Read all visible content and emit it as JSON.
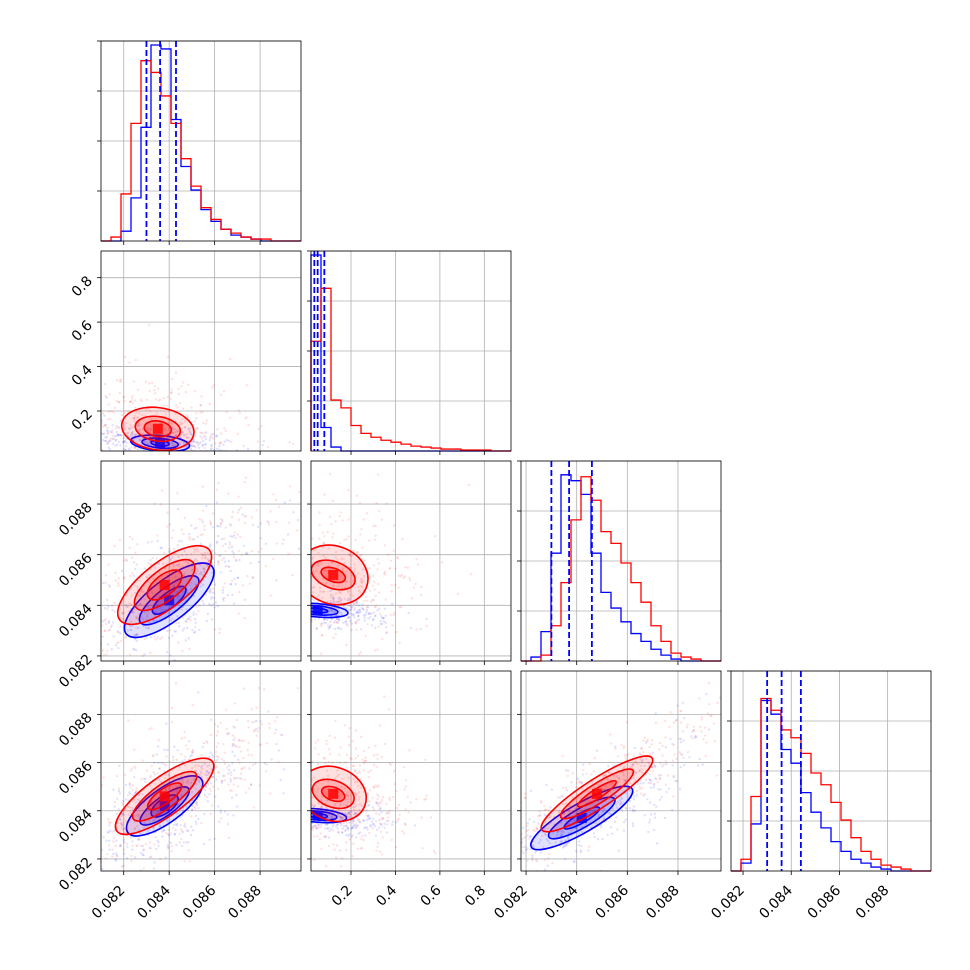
{
  "colors": {
    "series_a": "#ff0000",
    "series_b": "#0000ff",
    "grid": "#b0b0b0",
    "frame": "#000000"
  },
  "chart_data": {
    "type": "corner",
    "grid": true,
    "series": [
      {
        "color": "#ff0000"
      },
      {
        "color": "#0000ff"
      }
    ],
    "quantile_lines": {
      "color": "#0000ff",
      "style": "dashed"
    },
    "parameters": [
      {
        "range": [
          0.081,
          0.0898
        ],
        "ticks": [
          "0.082",
          "0.084",
          "0.086",
          "0.088"
        ],
        "tick_values": [
          0.082,
          0.084,
          0.086,
          0.088
        ],
        "quantiles_b": [
          0.083,
          0.0836,
          0.0843
        ],
        "hist_a": [
          0.0,
          0.02,
          0.24,
          0.6,
          0.92,
          0.86,
          0.74,
          0.6,
          0.42,
          0.28,
          0.17,
          0.11,
          0.06,
          0.04,
          0.02,
          0.01,
          0.01,
          0.0,
          0.0,
          0.0
        ],
        "hist_b": [
          0.0,
          0.0,
          0.05,
          0.22,
          0.58,
          1.0,
          0.98,
          0.62,
          0.38,
          0.26,
          0.16,
          0.1,
          0.06,
          0.03,
          0.02,
          0.01,
          0.0,
          0.0,
          0.0,
          0.0
        ]
      },
      {
        "range": [
          0.02,
          0.92
        ],
        "ticks": [
          "0.2",
          "0.4",
          "0.6",
          "0.8"
        ],
        "tick_values": [
          0.2,
          0.4,
          0.6,
          0.8
        ],
        "quantiles_b": [
          0.035,
          0.05,
          0.08
        ],
        "hist_a": [
          0.56,
          0.83,
          0.26,
          0.22,
          0.13,
          0.09,
          0.07,
          0.055,
          0.045,
          0.035,
          0.025,
          0.02,
          0.015,
          0.01,
          0.01,
          0.005,
          0.005,
          0.005,
          0.0,
          0.0
        ],
        "hist_b": [
          1.0,
          0.12,
          0.02,
          0.0,
          0.0,
          0.0,
          0.0,
          0.0,
          0.0,
          0.0,
          0.0,
          0.0,
          0.0,
          0.0,
          0.0,
          0.0,
          0.0,
          0.0,
          0.0,
          0.0
        ]
      },
      {
        "range": [
          0.0818,
          0.0897
        ],
        "ticks": [
          "0.082",
          "0.084",
          "0.086",
          "0.088"
        ],
        "tick_values": [
          0.082,
          0.084,
          0.086,
          0.088
        ],
        "quantiles_b": [
          0.083,
          0.0837,
          0.0846
        ],
        "hist_a": [
          0.0,
          0.0,
          0.03,
          0.18,
          0.4,
          0.72,
          0.94,
          0.82,
          0.66,
          0.6,
          0.5,
          0.4,
          0.3,
          0.18,
          0.1,
          0.04,
          0.02,
          0.01,
          0.0,
          0.0
        ],
        "hist_b": [
          0.0,
          0.02,
          0.15,
          0.55,
          0.95,
          0.92,
          0.85,
          0.55,
          0.35,
          0.27,
          0.2,
          0.14,
          0.1,
          0.06,
          0.03,
          0.01,
          0.0,
          0.0,
          0.0,
          0.0
        ]
      },
      {
        "range": [
          0.0815,
          0.0898
        ],
        "ticks": [
          "0.082",
          "0.084",
          "0.086",
          "0.088"
        ],
        "tick_values": [
          0.082,
          0.084,
          0.086,
          0.088
        ],
        "quantiles_b": [
          0.083,
          0.0836,
          0.0844
        ],
        "hist_a": [
          0.0,
          0.06,
          0.38,
          0.88,
          0.82,
          0.72,
          0.68,
          0.6,
          0.5,
          0.44,
          0.35,
          0.26,
          0.17,
          0.1,
          0.06,
          0.03,
          0.02,
          0.01,
          0.0,
          0.0
        ],
        "hist_b": [
          0.0,
          0.04,
          0.24,
          0.87,
          0.8,
          0.62,
          0.55,
          0.4,
          0.3,
          0.22,
          0.15,
          0.1,
          0.06,
          0.04,
          0.02,
          0.01,
          0.0,
          0.0,
          0.0,
          0.0
        ]
      }
    ],
    "contours": {
      "1-0": {
        "a": {
          "center": [
            0.0835,
            0.12
          ],
          "levels": [
            {
              "r": [
                0.0016,
                0.095
              ],
              "angle": 8
            },
            {
              "r": [
                0.001,
                0.055
              ],
              "angle": 8
            },
            {
              "r": [
                0.0006,
                0.035
              ],
              "angle": 8
            }
          ]
        },
        "b": {
          "center": [
            0.0836,
            0.055
          ],
          "levels": [
            {
              "r": [
                0.0013,
                0.035
              ],
              "angle": 5
            },
            {
              "r": [
                0.0008,
                0.022
              ],
              "angle": 5
            },
            {
              "r": [
                0.0004,
                0.012
              ],
              "angle": 5
            }
          ]
        }
      },
      "2-0": {
        "a": {
          "center": [
            0.0838,
            0.0848
          ],
          "levels": [
            {
              "r": [
                0.0025,
                0.0009
              ],
              "angle": -38
            },
            {
              "r": [
                0.0016,
                0.0006
              ],
              "angle": -38
            },
            {
              "r": [
                0.0009,
                0.0004
              ],
              "angle": -38
            }
          ]
        },
        "b": {
          "center": [
            0.084,
            0.0842
          ],
          "levels": [
            {
              "r": [
                0.0024,
                0.0008
              ],
              "angle": -38
            },
            {
              "r": [
                0.0016,
                0.0005
              ],
              "angle": -38
            },
            {
              "r": [
                0.0009,
                0.0003
              ],
              "angle": -38
            }
          ]
        }
      },
      "2-1": {
        "a": {
          "center": [
            0.12,
            0.0852
          ],
          "levels": [
            {
              "r": [
                0.13,
                0.0014
              ],
              "angle": -70
            },
            {
              "r": [
                0.06,
                0.0009
              ],
              "angle": -70
            },
            {
              "r": [
                0.03,
                0.0005
              ],
              "angle": -70
            }
          ]
        },
        "b": {
          "center": [
            0.05,
            0.0838
          ],
          "levels": [
            {
              "r": [
                0.03,
                0.0012
              ],
              "angle": -85
            },
            {
              "r": [
                0.02,
                0.0008
              ],
              "angle": -85
            },
            {
              "r": [
                0.01,
                0.0004
              ],
              "angle": -85
            }
          ]
        }
      },
      "3-0": {
        "a": {
          "center": [
            0.0838,
            0.0846
          ],
          "levels": [
            {
              "r": [
                0.0026,
                0.0008
              ],
              "angle": -36
            },
            {
              "r": [
                0.0017,
                0.0005
              ],
              "angle": -36
            },
            {
              "r": [
                0.0009,
                0.0003
              ],
              "angle": -36
            }
          ]
        },
        "b": {
          "center": [
            0.0838,
            0.0842
          ],
          "levels": [
            {
              "r": [
                0.002,
                0.0007
              ],
              "angle": -36
            },
            {
              "r": [
                0.0013,
                0.0004
              ],
              "angle": -36
            },
            {
              "r": [
                0.0007,
                0.0003
              ],
              "angle": -36
            }
          ]
        }
      },
      "3-1": {
        "a": {
          "center": [
            0.12,
            0.0847
          ],
          "levels": [
            {
              "r": [
                0.12,
                0.0014
              ],
              "angle": -70
            },
            {
              "r": [
                0.06,
                0.0009
              ],
              "angle": -70
            },
            {
              "r": [
                0.03,
                0.0005
              ],
              "angle": -70
            }
          ]
        },
        "b": {
          "center": [
            0.05,
            0.0838
          ],
          "levels": [
            {
              "r": [
                0.03,
                0.0012
              ],
              "angle": -85
            },
            {
              "r": [
                0.02,
                0.0008
              ],
              "angle": -85
            },
            {
              "r": [
                0.01,
                0.0004
              ],
              "angle": -85
            }
          ]
        }
      },
      "3-2": {
        "a": {
          "center": [
            0.0848,
            0.0847
          ],
          "levels": [
            {
              "r": [
                0.0026,
                0.0006
              ],
              "angle": -33
            },
            {
              "r": [
                0.0017,
                0.0004
              ],
              "angle": -33
            },
            {
              "r": [
                0.0009,
                0.0002
              ],
              "angle": -33
            }
          ]
        },
        "b": {
          "center": [
            0.0842,
            0.0837
          ],
          "levels": [
            {
              "r": [
                0.0023,
                0.0006
              ],
              "angle": -30
            },
            {
              "r": [
                0.0015,
                0.0004
              ],
              "angle": -30
            },
            {
              "r": [
                0.0008,
                0.0002
              ],
              "angle": -30
            }
          ]
        }
      }
    }
  }
}
